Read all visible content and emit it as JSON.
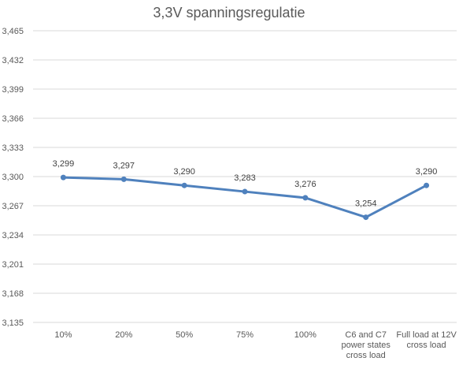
{
  "chart_data": {
    "type": "line",
    "title": "3,3V spanningsregulatie",
    "xlabel": "",
    "ylabel": "",
    "categories": [
      "10%",
      "20%",
      "50%",
      "75%",
      "100%",
      "C6 and C7 power states cross load",
      "Full load at 12V cross load"
    ],
    "category_lines": [
      [
        "10%"
      ],
      [
        "20%"
      ],
      [
        "50%"
      ],
      [
        "75%"
      ],
      [
        "100%"
      ],
      [
        "C6 and C7",
        "power states",
        "cross load"
      ],
      [
        "Full load at 12V",
        "cross load"
      ]
    ],
    "series": [
      {
        "values": [
          3.299,
          3.297,
          3.29,
          3.283,
          3.276,
          3.254,
          3.29
        ],
        "labels": [
          "3,299",
          "3,297",
          "3,290",
          "3,283",
          "3,276",
          "3,254",
          "3,290"
        ],
        "color": "#4f81bd"
      }
    ],
    "ylim": [
      3.135,
      3.465
    ],
    "yticks": [
      3.465,
      3.432,
      3.399,
      3.366,
      3.333,
      3.3,
      3.267,
      3.234,
      3.201,
      3.168,
      3.135
    ],
    "ytick_labels": [
      "3,465",
      "3,432",
      "3,399",
      "3,366",
      "3,333",
      "3,300",
      "3,267",
      "3,234",
      "3,201",
      "3,168",
      "3,135"
    ],
    "grid": true,
    "legend": "none"
  }
}
